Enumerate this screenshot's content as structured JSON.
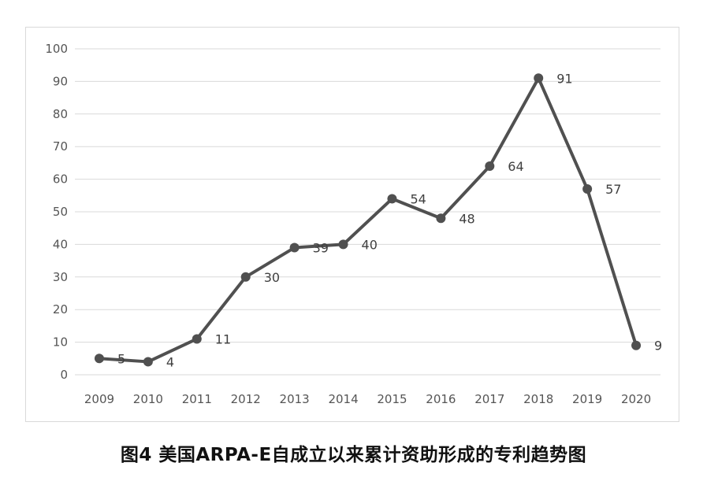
{
  "caption": "图4 美国ARPA-E自成立以来累计资助形成的专利趋势图",
  "colors": {
    "line": "#505050",
    "grid": "#d9d9d9",
    "axis_text": "#555555"
  },
  "chart_data": {
    "type": "line",
    "title": "",
    "xlabel": "",
    "ylabel": "",
    "categories": [
      "2009",
      "2010",
      "2011",
      "2012",
      "2013",
      "2014",
      "2015",
      "2016",
      "2017",
      "2018",
      "2019",
      "2020"
    ],
    "series": [
      {
        "values": [
          5,
          4,
          11,
          30,
          39,
          40,
          54,
          48,
          64,
          91,
          57,
          9
        ]
      }
    ],
    "data_labels": [
      "5",
      "4",
      "11",
      "30",
      "39",
      "40",
      "54",
      "48",
      "64",
      "91",
      "57",
      "9"
    ],
    "ylim": [
      0,
      100
    ],
    "yticks": [
      "0",
      "10",
      "20",
      "30",
      "40",
      "50",
      "60",
      "70",
      "80",
      "90",
      "100"
    ],
    "grid": true,
    "legend": "none",
    "markers": "circle"
  }
}
